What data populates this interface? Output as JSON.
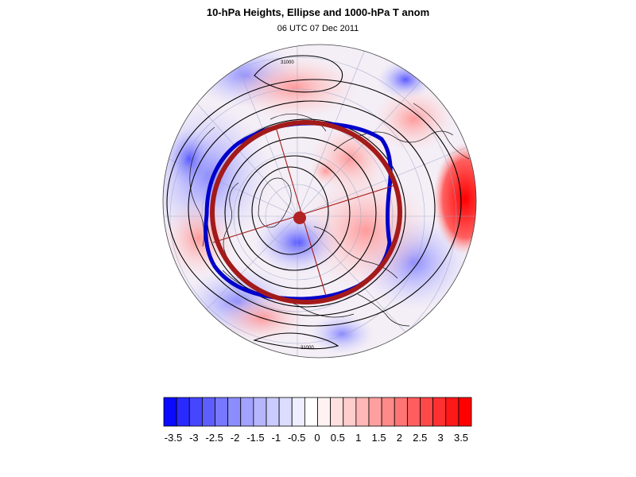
{
  "title": "10-hPa Heights, Ellipse and 1000-hPa T anom",
  "subtitle": "06 UTC 07 Dec 2011",
  "contour_labels": [
    "31000",
    "31000"
  ],
  "colorbar": {
    "labels": [
      "-3.5",
      "-3",
      "-2.5",
      "-2",
      "-1.5",
      "-1",
      "-0.5",
      "0",
      "0.5",
      "1",
      "1.5",
      "2",
      "2.5",
      "3",
      "3.5"
    ],
    "colors": [
      "#0a0aff",
      "#2a2aff",
      "#4646ff",
      "#5e5eff",
      "#7777ff",
      "#8c8cff",
      "#a2a2ff",
      "#b6b6ff",
      "#cacaff",
      "#dcdcff",
      "#eeeeff",
      "#ffffff",
      "#fff2f2",
      "#ffe0e0",
      "#ffcccc",
      "#ffb6b6",
      "#ffa0a0",
      "#ff8a8a",
      "#ff7474",
      "#ff5e5e",
      "#ff4848",
      "#ff3030",
      "#ff1818",
      "#ff0000"
    ]
  },
  "ellipse_color": "#a31a1a",
  "vortex_edge_color": "#0000cc"
}
